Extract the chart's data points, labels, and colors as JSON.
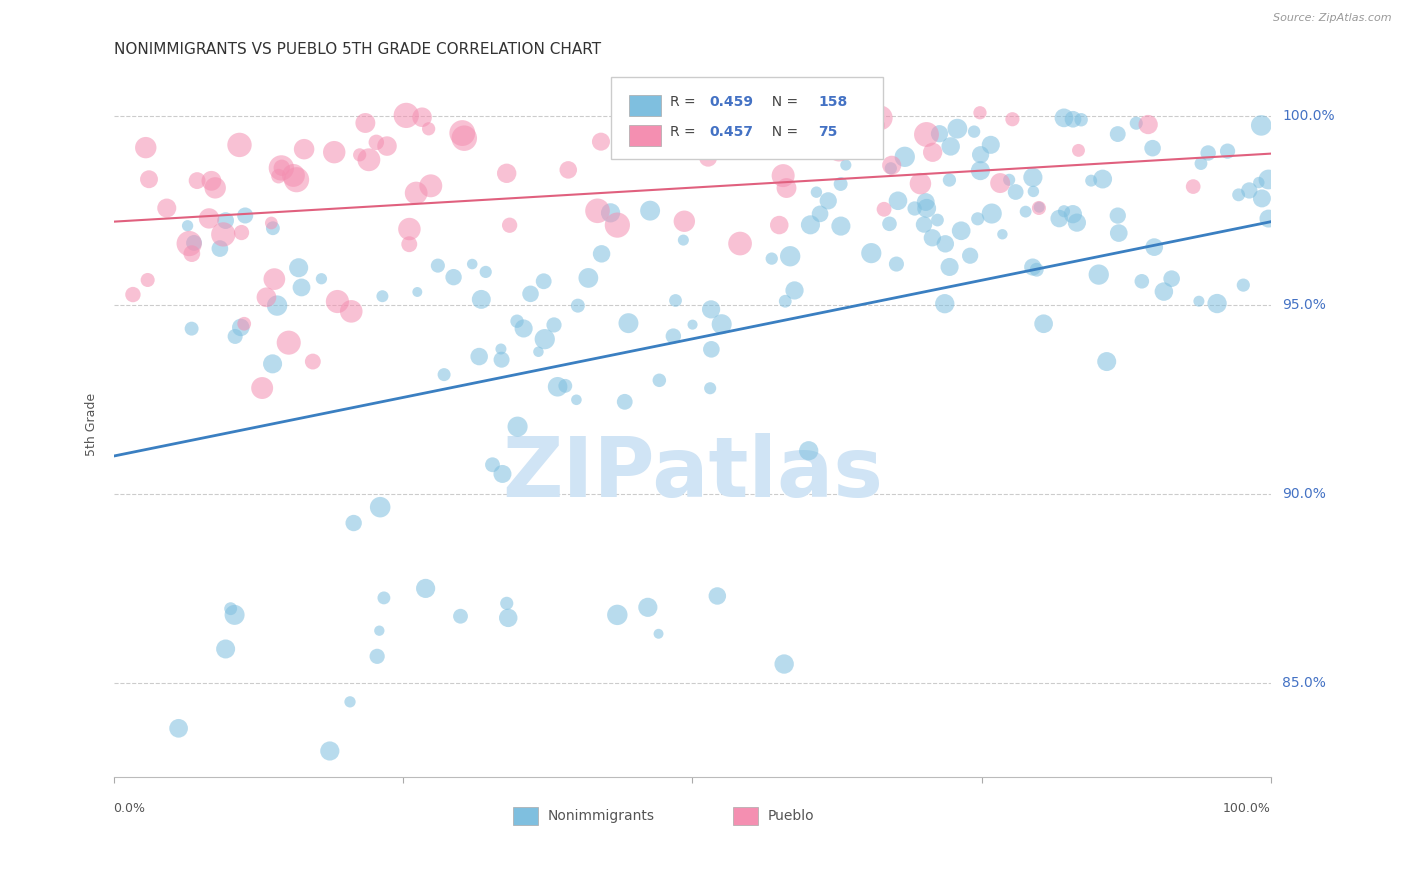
{
  "title": "NONIMMIGRANTS VS PUEBLO 5TH GRADE CORRELATION CHART",
  "source": "Source: ZipAtlas.com",
  "ylabel": "5th Grade",
  "ytick_values": [
    0.85,
    0.9,
    0.95,
    1.0
  ],
  "ytick_labels": [
    "85.0%",
    "90.0%",
    "95.0%",
    "100.0%"
  ],
  "xlim": [
    0.0,
    1.0
  ],
  "ylim": [
    0.825,
    1.012
  ],
  "blue_color": "#7fbfdf",
  "pink_color": "#f48fb1",
  "blue_line_color": "#3a7fc1",
  "pink_line_color": "#e0607e",
  "watermark_text": "ZIPatlas",
  "watermark_color": "#d0e4f5",
  "grid_color": "#cccccc",
  "background_color": "#ffffff",
  "blue_line_y0": 0.91,
  "blue_line_y1": 0.972,
  "pink_line_y0": 0.972,
  "pink_line_y1": 0.99,
  "legend_r_blue": "0.459",
  "legend_n_blue": "158",
  "legend_r_pink": "0.457",
  "legend_n_pink": "75",
  "title_fontsize": 11,
  "source_fontsize": 8,
  "label_color": "#4472c4",
  "text_color": "#555555"
}
